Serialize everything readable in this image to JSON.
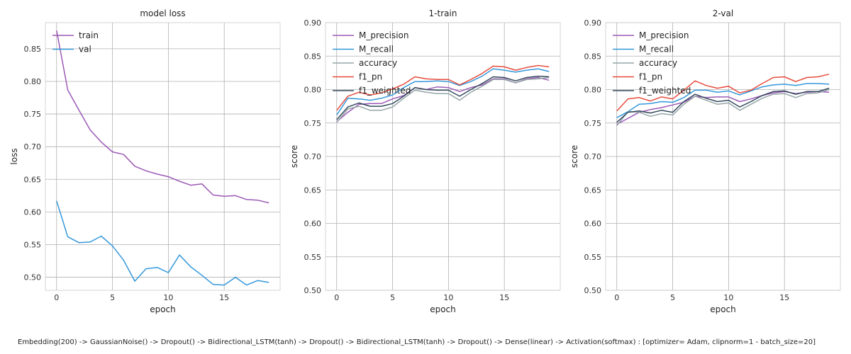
{
  "caption": "Embedding(200) -> GaussianNoise() -> Dropout() -> Bidirectional_LSTM(tanh) -> Dropout() -> Bidirectional_LSTM(tanh) -> Dropout() -> Dense(linear) -> Activation(softmax) : [optimizer= Adam, clipnorm=1 - batch_size=20]",
  "colors": {
    "M_precision": "#9b59b6",
    "M_recall": "#3498db",
    "accuracy": "#95a5a6",
    "f1_pn": "#e74c3c",
    "f1_weighted": "#34495e",
    "train": "#9b59b6",
    "val": "#3498db",
    "grid": "#b0b0b0"
  },
  "chart_data": [
    {
      "type": "line",
      "title": "model loss",
      "xlabel": "epoch",
      "ylabel": "loss",
      "xlim": [
        -1,
        20
      ],
      "ylim": [
        0.48,
        0.89
      ],
      "xticks": [
        0,
        5,
        10,
        15
      ],
      "yticks": [
        0.5,
        0.55,
        0.6,
        0.65,
        0.7,
        0.75,
        0.8,
        0.85
      ],
      "grid": true,
      "legend": "top-left",
      "x": [
        0,
        1,
        2,
        3,
        4,
        5,
        6,
        7,
        8,
        9,
        10,
        11,
        12,
        13,
        14,
        15,
        16,
        17,
        18,
        19
      ],
      "series": [
        {
          "name": "train",
          "values": [
            0.878,
            0.787,
            0.756,
            0.726,
            0.707,
            0.692,
            0.688,
            0.67,
            0.663,
            0.658,
            0.654,
            0.647,
            0.641,
            0.643,
            0.626,
            0.624,
            0.625,
            0.619,
            0.618,
            0.614
          ]
        },
        {
          "name": "val",
          "values": [
            0.617,
            0.562,
            0.553,
            0.554,
            0.563,
            0.548,
            0.526,
            0.494,
            0.513,
            0.515,
            0.507,
            0.534,
            0.516,
            0.503,
            0.489,
            0.488,
            0.5,
            0.488,
            0.495,
            0.492
          ]
        }
      ]
    },
    {
      "type": "line",
      "title": "1-train",
      "xlabel": "epoch",
      "ylabel": "score",
      "xlim": [
        -1,
        20
      ],
      "ylim": [
        0.5,
        0.9
      ],
      "xticks": [
        0,
        5,
        10,
        15
      ],
      "yticks": [
        0.5,
        0.55,
        0.6,
        0.65,
        0.7,
        0.75,
        0.8,
        0.85,
        0.9
      ],
      "grid": true,
      "legend": "top-left",
      "x": [
        0,
        1,
        2,
        3,
        4,
        5,
        6,
        7,
        8,
        9,
        10,
        11,
        12,
        13,
        14,
        15,
        16,
        17,
        18,
        19
      ],
      "series": [
        {
          "name": "M_precision",
          "values": [
            0.752,
            0.766,
            0.778,
            0.779,
            0.779,
            0.786,
            0.791,
            0.803,
            0.8,
            0.804,
            0.803,
            0.797,
            0.803,
            0.807,
            0.816,
            0.816,
            0.81,
            0.816,
            0.818,
            0.814
          ]
        },
        {
          "name": "M_recall",
          "values": [
            0.762,
            0.787,
            0.786,
            0.784,
            0.787,
            0.792,
            0.803,
            0.812,
            0.812,
            0.813,
            0.812,
            0.806,
            0.812,
            0.82,
            0.831,
            0.829,
            0.826,
            0.829,
            0.831,
            0.827
          ]
        },
        {
          "name": "accuracy",
          "values": [
            0.751,
            0.771,
            0.775,
            0.769,
            0.769,
            0.774,
            0.787,
            0.799,
            0.796,
            0.794,
            0.794,
            0.784,
            0.796,
            0.805,
            0.815,
            0.815,
            0.81,
            0.815,
            0.816,
            0.818
          ]
        },
        {
          "name": "f1_pn",
          "values": [
            0.769,
            0.79,
            0.796,
            0.792,
            0.795,
            0.801,
            0.808,
            0.819,
            0.816,
            0.815,
            0.815,
            0.807,
            0.815,
            0.824,
            0.835,
            0.834,
            0.829,
            0.833,
            0.836,
            0.834
          ]
        },
        {
          "name": "f1_weighted",
          "values": [
            0.755,
            0.774,
            0.78,
            0.775,
            0.775,
            0.779,
            0.79,
            0.803,
            0.8,
            0.799,
            0.799,
            0.79,
            0.8,
            0.809,
            0.819,
            0.818,
            0.813,
            0.818,
            0.82,
            0.819
          ]
        }
      ]
    },
    {
      "type": "line",
      "title": "2-val",
      "xlabel": "epoch",
      "ylabel": "score",
      "xlim": [
        -1,
        20
      ],
      "ylim": [
        0.5,
        0.9
      ],
      "xticks": [
        0,
        5,
        10,
        15
      ],
      "yticks": [
        0.5,
        0.55,
        0.6,
        0.65,
        0.7,
        0.75,
        0.8,
        0.85,
        0.9
      ],
      "grid": true,
      "legend": "top-left",
      "x": [
        0,
        1,
        2,
        3,
        4,
        5,
        6,
        7,
        8,
        9,
        10,
        11,
        12,
        13,
        14,
        15,
        16,
        17,
        18,
        19
      ],
      "series": [
        {
          "name": "M_precision",
          "values": [
            0.748,
            0.757,
            0.766,
            0.77,
            0.773,
            0.777,
            0.781,
            0.79,
            0.788,
            0.789,
            0.789,
            0.782,
            0.786,
            0.791,
            0.795,
            0.797,
            0.794,
            0.796,
            0.797,
            0.796
          ]
        },
        {
          "name": "M_recall",
          "values": [
            0.758,
            0.767,
            0.778,
            0.779,
            0.782,
            0.781,
            0.788,
            0.799,
            0.799,
            0.796,
            0.798,
            0.792,
            0.798,
            0.804,
            0.807,
            0.808,
            0.806,
            0.809,
            0.809,
            0.808
          ]
        },
        {
          "name": "accuracy",
          "values": [
            0.746,
            0.767,
            0.766,
            0.76,
            0.764,
            0.762,
            0.778,
            0.79,
            0.784,
            0.778,
            0.78,
            0.769,
            0.778,
            0.787,
            0.793,
            0.794,
            0.788,
            0.794,
            0.795,
            0.8
          ]
        },
        {
          "name": "f1_pn",
          "values": [
            0.768,
            0.786,
            0.788,
            0.783,
            0.789,
            0.786,
            0.799,
            0.813,
            0.806,
            0.802,
            0.805,
            0.795,
            0.799,
            0.809,
            0.818,
            0.819,
            0.812,
            0.818,
            0.819,
            0.823
          ]
        },
        {
          "name": "f1_weighted",
          "values": [
            0.751,
            0.766,
            0.768,
            0.765,
            0.769,
            0.766,
            0.782,
            0.793,
            0.787,
            0.782,
            0.784,
            0.774,
            0.782,
            0.791,
            0.797,
            0.798,
            0.793,
            0.797,
            0.797,
            0.802
          ]
        }
      ]
    }
  ]
}
